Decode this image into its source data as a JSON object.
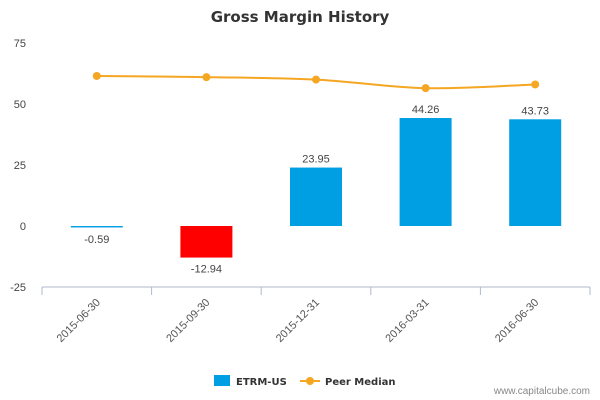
{
  "chart_data": {
    "type": "bar",
    "title": "Gross Margin History",
    "categories": [
      "2015-06-30",
      "2015-09-30",
      "2015-12-31",
      "2016-03-31",
      "2016-06-30"
    ],
    "ylim": [
      -25,
      75
    ],
    "yticks": [
      75,
      50,
      25,
      0,
      -25
    ],
    "grid": false,
    "legend_position": "bottom-center",
    "series": [
      {
        "name": "ETRM-US",
        "type": "bar",
        "values": [
          -0.59,
          -12.94,
          23.95,
          44.26,
          43.73
        ],
        "labels": [
          "-0.59",
          "-12.94",
          "23.95",
          "44.26",
          "43.73"
        ],
        "color": "#009fe3",
        "negative_color": "#ff0000"
      },
      {
        "name": "Peer Median",
        "type": "line",
        "values": [
          61.5,
          61.0,
          60.0,
          56.5,
          58.0
        ],
        "color": "#f5a623"
      }
    ]
  },
  "watermark": "www.capitalcube.com"
}
